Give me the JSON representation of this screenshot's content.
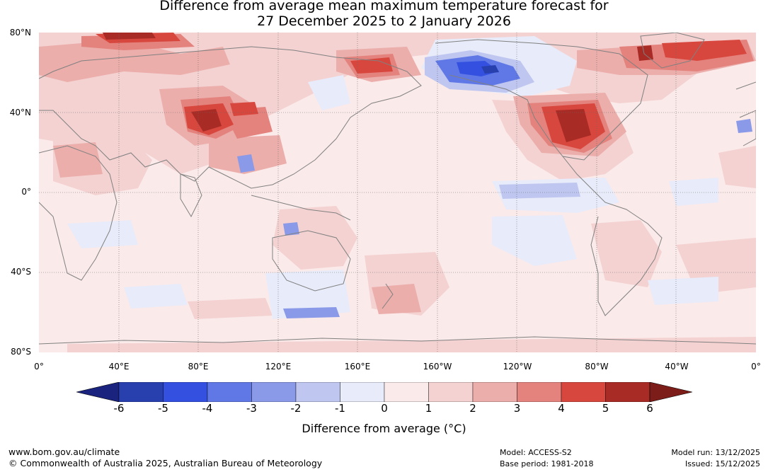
{
  "title": {
    "line1": "Difference from average mean maximum temperature forecast for",
    "line2": "27 December 2025 to 2 January 2026"
  },
  "map": {
    "lat_labels": [
      "80°N",
      "40°N",
      "0°",
      "40°S",
      "80°S"
    ],
    "lon_labels": [
      "0°",
      "40°E",
      "80°E",
      "120°E",
      "160°E",
      "160°W",
      "120°W",
      "80°W",
      "40°W",
      "0°"
    ]
  },
  "colorbar": {
    "ticks": [
      "-6",
      "-5",
      "-4",
      "-3",
      "-2",
      "-1",
      "0",
      "1",
      "2",
      "3",
      "4",
      "5",
      "6"
    ],
    "colors": [
      "#1a237e",
      "#283fae",
      "#3350e0",
      "#5f78e6",
      "#8a9ae8",
      "#bfc6f0",
      "#e8ebf9",
      "#fbeaea",
      "#f4d2d2",
      "#ebaeab",
      "#e4837e",
      "#d8473e",
      "#a82b25",
      "#7c1d19"
    ],
    "label": "Difference from average (°C)"
  },
  "footer": {
    "url": "www.bom.gov.au/climate",
    "copyright": "© Commonwealth of Australia 2025, Australian Bureau of Meteorology",
    "model": "Model: ACCESS-S2",
    "base_period": "Base period: 1981-2018",
    "model_run": "Model run: 13/12/2025",
    "issued": "Issued: 15/12/2025"
  }
}
